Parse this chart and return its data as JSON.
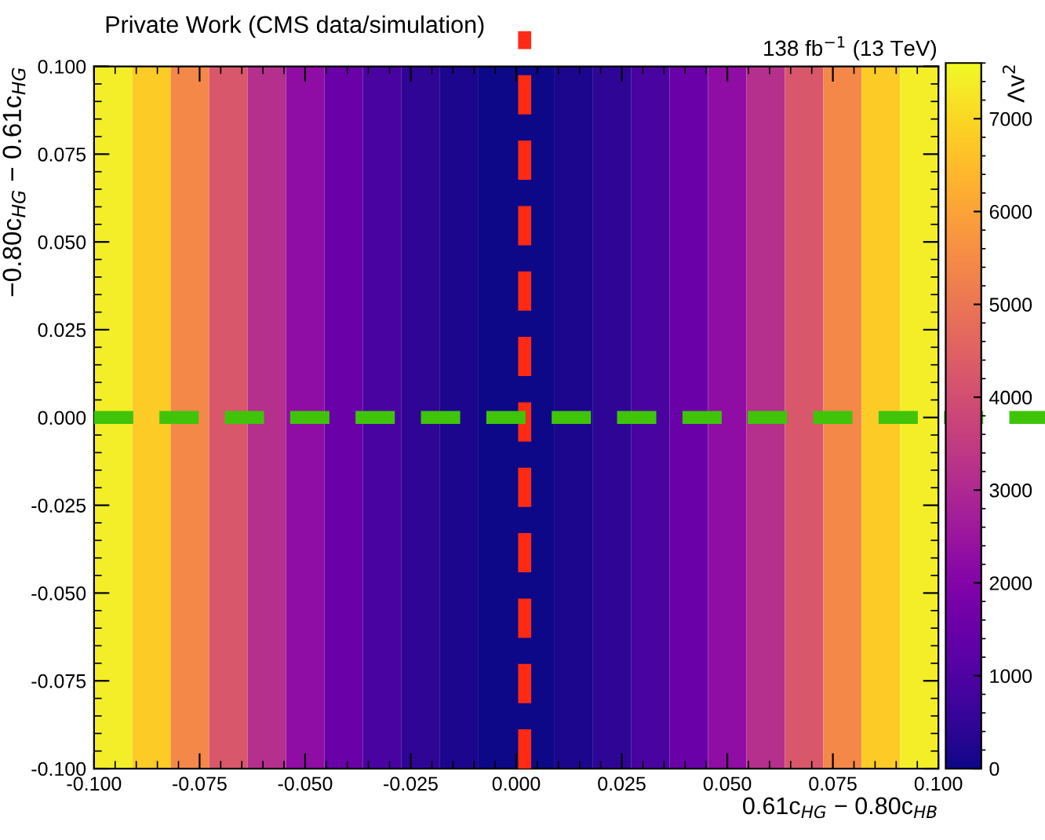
{
  "chart_data": {
    "type": "heatmap",
    "title": "Private Work (CMS data/simulation)",
    "xlabel": "0.61c$_{HG}$ − 0.80c$_{HB}$",
    "ylabel": "−0.80c$_{HG}$ − 0.61c$_{HG}$",
    "clabel": "Λv$^{2}$",
    "annotations": [
      "138 fb$^{−1}$ (13 TeV)"
    ],
    "xlim": [
      -0.1,
      0.1
    ],
    "ylim": [
      -0.1,
      0.1
    ],
    "xticks": [
      {
        "value": -0.1,
        "label": "-0.100"
      },
      {
        "value": -0.075,
        "label": "-0.075"
      },
      {
        "value": -0.05,
        "label": "-0.050"
      },
      {
        "value": -0.025,
        "label": "-0.025"
      },
      {
        "value": 0,
        "label": "0.000"
      },
      {
        "value": 0.025,
        "label": "0.025"
      },
      {
        "value": 0.05,
        "label": "0.050"
      },
      {
        "value": 0.075,
        "label": "0.075"
      },
      {
        "value": 0.1,
        "label": "0.100"
      }
    ],
    "yticks": [
      {
        "value": -0.1,
        "label": "-0.100"
      },
      {
        "value": -0.075,
        "label": "-0.075"
      },
      {
        "value": -0.05,
        "label": "-0.050"
      },
      {
        "value": -0.025,
        "label": "-0.025"
      },
      {
        "value": 0,
        "label": "0.000"
      },
      {
        "value": 0.025,
        "label": "0.025"
      },
      {
        "value": 0.05,
        "label": "0.050"
      },
      {
        "value": 0.075,
        "label": "0.075"
      },
      {
        "value": 0.1,
        "label": "0.100"
      }
    ],
    "cells": [
      [
        7400,
        6770,
        5420,
        4220,
        3170,
        2270,
        1520,
        920,
        470,
        170,
        20,
        20,
        170,
        470,
        920,
        1520,
        2270,
        3170,
        4220,
        5420,
        6770,
        7400
      ]
    ],
    "clim": [
      0,
      7600
    ],
    "cticks": [
      0,
      1000,
      2000,
      3000,
      4000,
      5000,
      6000,
      7000
    ],
    "ref_lines": [
      {
        "axis": "x",
        "value": 0.002,
        "color": "#ff2a14",
        "line_style": "dashed"
      },
      {
        "axis": "y",
        "value": 0,
        "color": "#3fc40a",
        "line_style": "dashed"
      }
    ],
    "grid": false
  }
}
